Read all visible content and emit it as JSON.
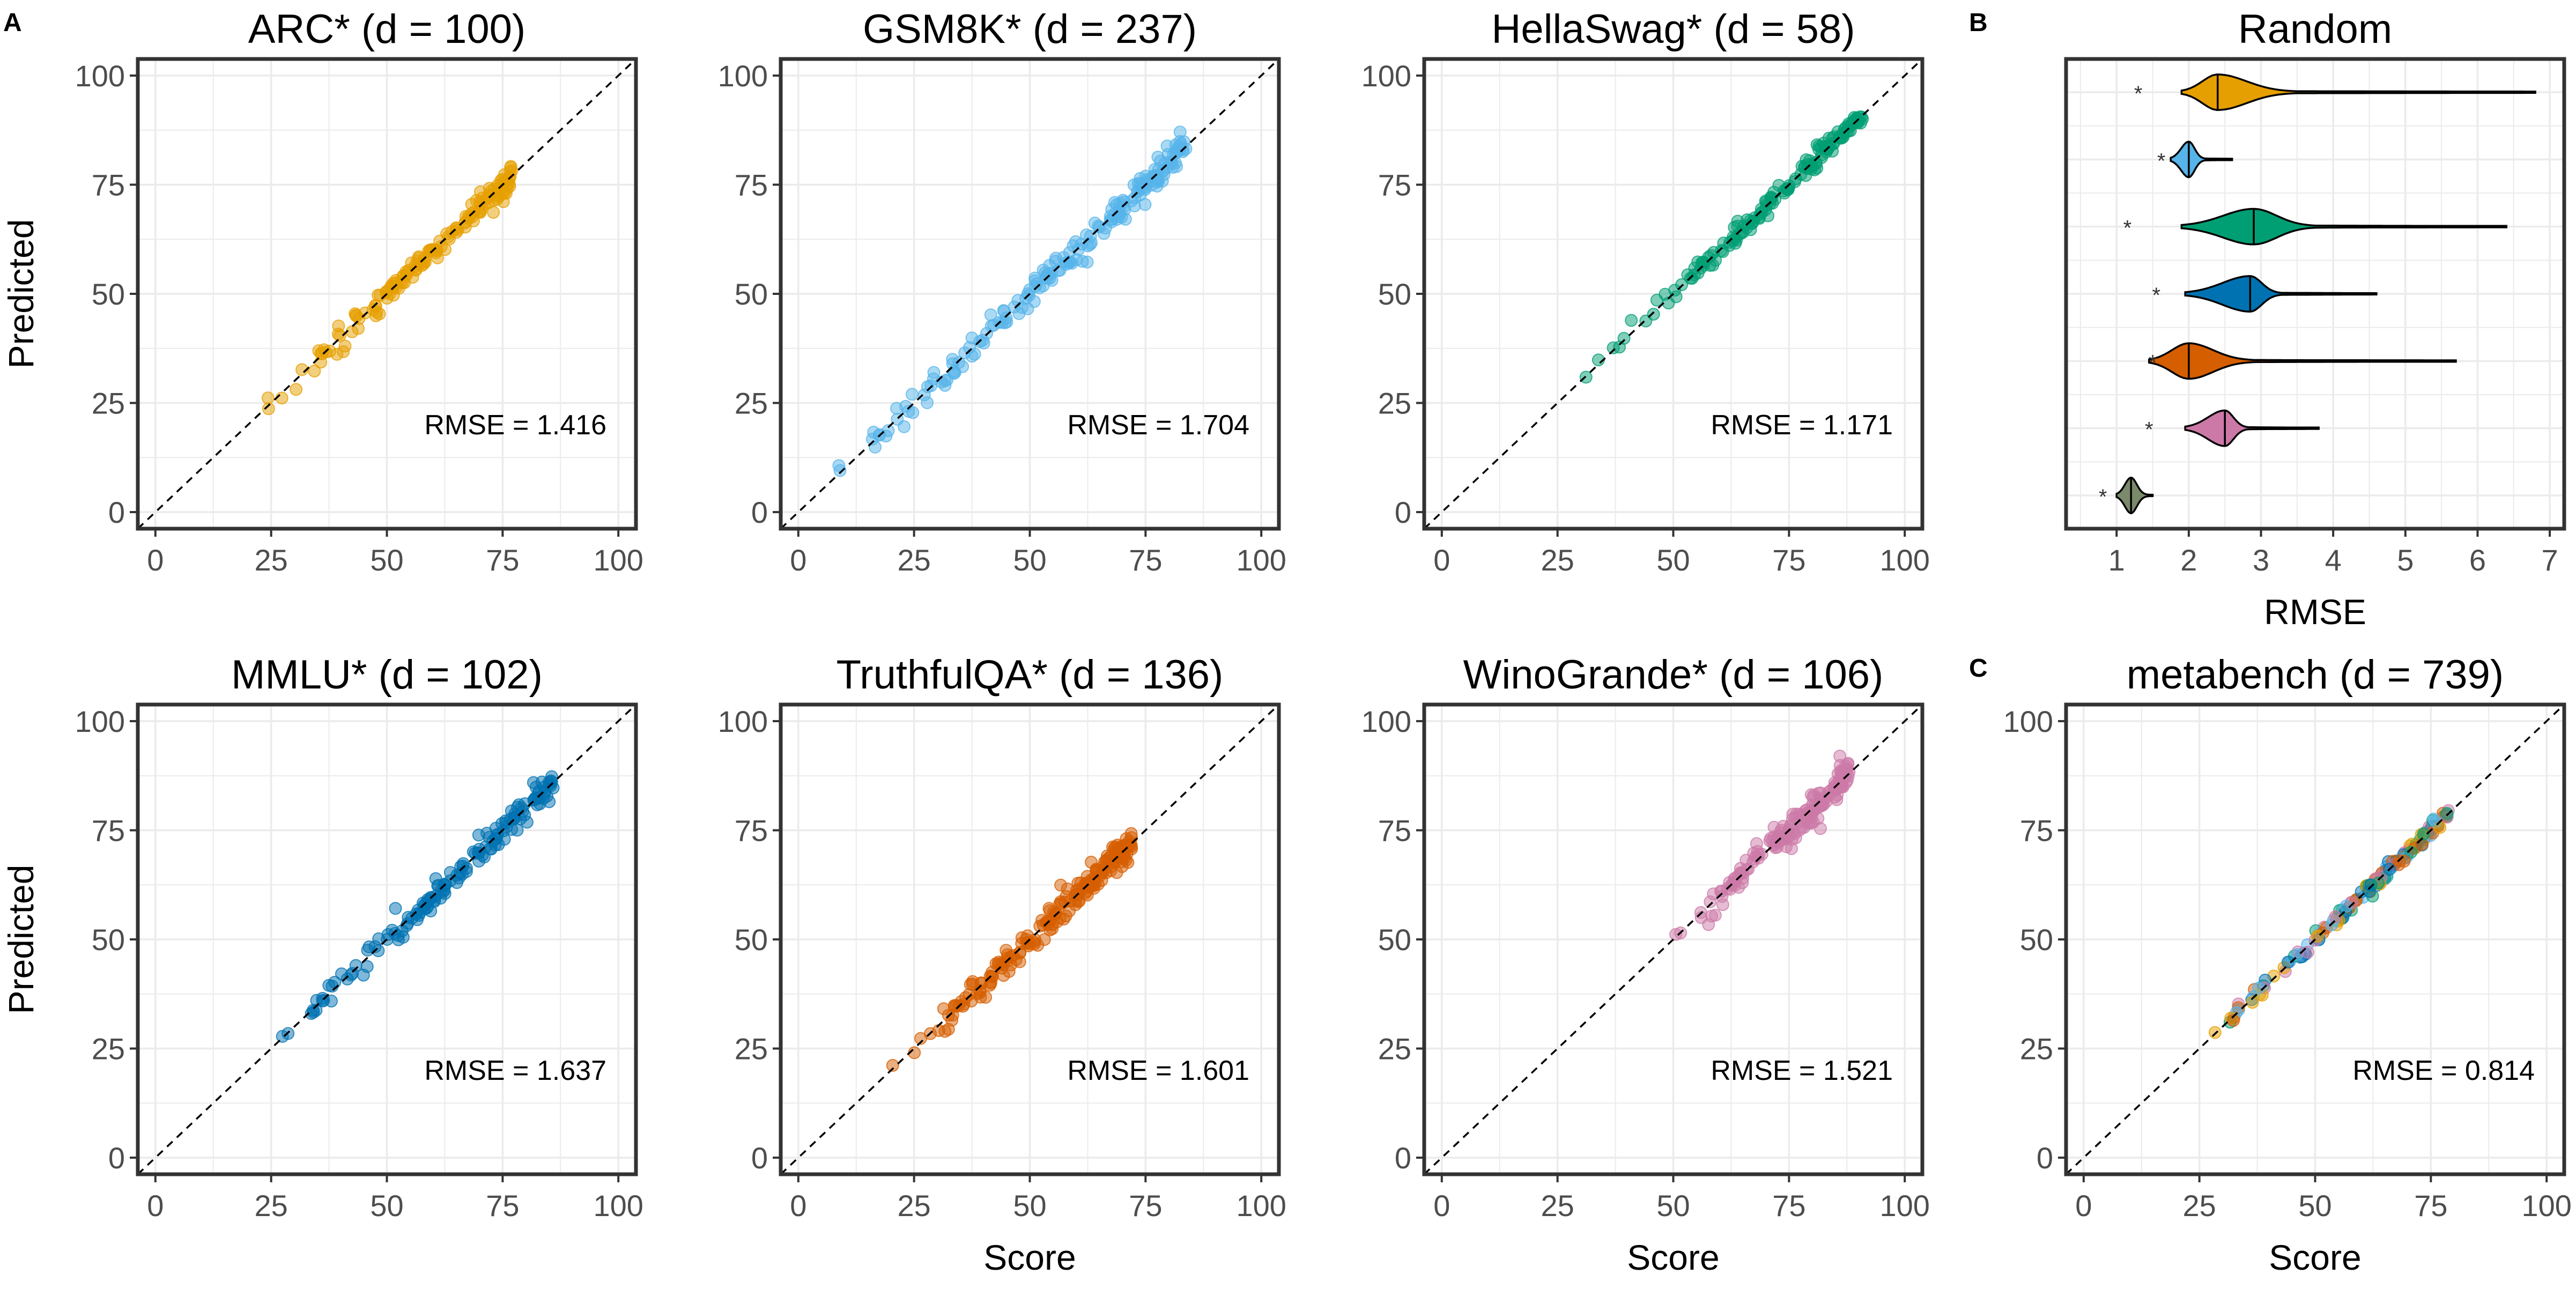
{
  "panel_labels": [
    "A",
    "B",
    "C"
  ],
  "chart_data": [
    {
      "type": "scatter",
      "title": "ARC* (d = 100)",
      "xlabel": "",
      "ylabel": "Predicted",
      "xlim": [
        0,
        100
      ],
      "ylim": [
        0,
        100
      ],
      "ticks": [
        "0",
        "25",
        "50",
        "75",
        "100"
      ],
      "annotation": "RMSE = 1.416",
      "color": "#E69F00",
      "data_range": [
        22,
        77
      ],
      "rmse": 1.416,
      "n_points": 150
    },
    {
      "type": "scatter",
      "title": "GSM8K* (d = 237)",
      "xlabel": "",
      "ylabel": "",
      "xlim": [
        0,
        100
      ],
      "ylim": [
        0,
        100
      ],
      "ticks": [
        "0",
        "25",
        "50",
        "75",
        "100"
      ],
      "annotation": "RMSE = 1.704",
      "color": "#56B4E9",
      "data_range": [
        0,
        84
      ],
      "rmse": 1.704,
      "n_points": 190
    },
    {
      "type": "scatter",
      "title": "HellaSwag* (d = 58)",
      "xlabel": "",
      "ylabel": "",
      "xlim": [
        0,
        100
      ],
      "ylim": [
        0,
        100
      ],
      "ticks": [
        "0",
        "25",
        "50",
        "75",
        "100"
      ],
      "annotation": "RMSE = 1.171",
      "color": "#009E73",
      "data_range": [
        26,
        91
      ],
      "rmse": 1.171,
      "n_points": 150
    },
    {
      "type": "violin",
      "title": "Random",
      "xlabel": "RMSE",
      "ylabel": "",
      "xlim": [
        0.3,
        7.2
      ],
      "ticks": [
        "1",
        "2",
        "3",
        "4",
        "5",
        "6",
        "7"
      ],
      "star_label": "*",
      "violins": [
        {
          "color": "#E69F00",
          "median": 2.4,
          "min": 1.9,
          "max": 6.8,
          "star": 1.3
        },
        {
          "color": "#56B4E9",
          "median": 2.0,
          "min": 1.75,
          "max": 2.6,
          "star": 1.62
        },
        {
          "color": "#009E73",
          "median": 2.9,
          "min": 1.9,
          "max": 6.4,
          "star": 1.15
        },
        {
          "color": "#0072B2",
          "median": 2.85,
          "min": 1.95,
          "max": 4.6,
          "star": 1.55
        },
        {
          "color": "#D55E00",
          "median": 2.0,
          "min": 1.45,
          "max": 5.7,
          "star": 1.5
        },
        {
          "color": "#CC79A7",
          "median": 2.5,
          "min": 1.95,
          "max": 3.8,
          "star": 1.45
        },
        {
          "color": "#7a8a6a",
          "median": 1.2,
          "min": 1.0,
          "max": 1.5,
          "star": 0.81
        }
      ]
    },
    {
      "type": "scatter",
      "title": "MMLU* (d = 102)",
      "xlabel": "",
      "ylabel": "Predicted",
      "xlim": [
        0,
        100
      ],
      "ylim": [
        0,
        100
      ],
      "ticks": [
        "0",
        "25",
        "50",
        "75",
        "100"
      ],
      "annotation": "RMSE = 1.637",
      "color": "#0072B2",
      "data_range": [
        23,
        86
      ],
      "rmse": 1.637,
      "n_points": 150
    },
    {
      "type": "scatter",
      "title": "TruthfulQA* (d = 136)",
      "xlabel": "Score",
      "ylabel": "",
      "xlim": [
        0,
        100
      ],
      "ylim": [
        0,
        100
      ],
      "ticks": [
        "0",
        "25",
        "50",
        "75",
        "100"
      ],
      "annotation": "RMSE = 1.601",
      "color": "#D55E00",
      "data_range": [
        20,
        72
      ],
      "rmse": 1.601,
      "n_points": 190
    },
    {
      "type": "scatter",
      "title": "WinoGrande* (d = 106)",
      "xlabel": "Score",
      "ylabel": "",
      "xlim": [
        0,
        100
      ],
      "ylim": [
        0,
        100
      ],
      "ticks": [
        "0",
        "25",
        "50",
        "75",
        "100"
      ],
      "annotation": "RMSE = 1.521",
      "color": "#CC79A7",
      "data_range": [
        50,
        88
      ],
      "rmse": 1.521,
      "n_points": 170
    },
    {
      "type": "scatter",
      "title": "metabench (d = 739)",
      "xlabel": "Score",
      "ylabel": "",
      "xlim": [
        0,
        100
      ],
      "ylim": [
        0,
        100
      ],
      "ticks": [
        "0",
        "25",
        "50",
        "75",
        "100"
      ],
      "annotation": "RMSE = 0.814",
      "palette": [
        "#E69F00",
        "#56B4E9",
        "#009E73",
        "#0072B2",
        "#D55E00",
        "#CC79A7"
      ],
      "data_range": [
        24,
        79
      ],
      "rmse": 0.814,
      "n_points": 160
    }
  ]
}
